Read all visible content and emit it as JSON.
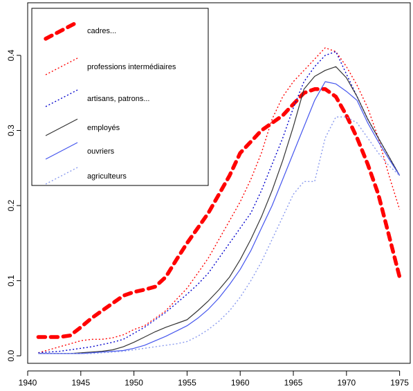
{
  "chart_data": {
    "type": "line",
    "title": "",
    "xlabel": "",
    "ylabel": "",
    "xlim": [
      1940,
      1976
    ],
    "ylim": [
      -0.01,
      0.47
    ],
    "xticks": [
      1940,
      1945,
      1950,
      1955,
      1960,
      1965,
      1970,
      1975
    ],
    "yticks": [
      0.0,
      0.1,
      0.2,
      0.3,
      0.4
    ],
    "xtick_labels": [
      "1940",
      "1945",
      "1950",
      "1955",
      "1960",
      "1965",
      "1970",
      "1975"
    ],
    "ytick_labels": [
      "0.0",
      "0.1",
      "0.2",
      "0.3",
      "0.4"
    ],
    "grid": false,
    "legend_position": "top-left",
    "series": [
      {
        "name": "cadres...",
        "color": "#ff0000",
        "style": "thick-dashed",
        "x": [
          1941,
          1942,
          1943,
          1944,
          1945,
          1946,
          1947,
          1948,
          1949,
          1950,
          1951,
          1952,
          1953,
          1954,
          1955,
          1956,
          1957,
          1958,
          1959,
          1960,
          1961,
          1962,
          1963,
          1964,
          1965,
          1966,
          1967,
          1968,
          1969,
          1970,
          1971,
          1972,
          1973,
          1974,
          1975
        ],
        "y": [
          0.025,
          0.025,
          0.025,
          0.027,
          0.038,
          0.05,
          0.06,
          0.07,
          0.08,
          0.085,
          0.088,
          0.092,
          0.105,
          0.128,
          0.15,
          0.17,
          0.19,
          0.215,
          0.24,
          0.27,
          0.285,
          0.3,
          0.31,
          0.32,
          0.335,
          0.35,
          0.355,
          0.355,
          0.345,
          0.32,
          0.29,
          0.255,
          0.215,
          0.16,
          0.105
        ]
      },
      {
        "name": "professions intermédiaires",
        "color": "#ff0000",
        "style": "dotted",
        "x": [
          1941,
          1942,
          1943,
          1944,
          1945,
          1946,
          1947,
          1948,
          1949,
          1950,
          1951,
          1952,
          1953,
          1954,
          1955,
          1956,
          1957,
          1958,
          1959,
          1960,
          1961,
          1962,
          1963,
          1964,
          1965,
          1966,
          1967,
          1968,
          1969,
          1970,
          1971,
          1972,
          1973,
          1974,
          1975
        ],
        "y": [
          0.004,
          0.008,
          0.012,
          0.016,
          0.02,
          0.022,
          0.022,
          0.024,
          0.028,
          0.035,
          0.04,
          0.05,
          0.06,
          0.075,
          0.09,
          0.11,
          0.13,
          0.155,
          0.18,
          0.205,
          0.235,
          0.27,
          0.315,
          0.345,
          0.365,
          0.38,
          0.395,
          0.41,
          0.405,
          0.385,
          0.36,
          0.33,
          0.29,
          0.24,
          0.195
        ]
      },
      {
        "name": "artisans, patrons...",
        "color": "#0000cc",
        "style": "dotted",
        "x": [
          1941,
          1942,
          1943,
          1944,
          1945,
          1946,
          1947,
          1948,
          1949,
          1950,
          1951,
          1952,
          1953,
          1954,
          1955,
          1956,
          1957,
          1958,
          1959,
          1960,
          1961,
          1962,
          1963,
          1964,
          1965,
          1966,
          1967,
          1968,
          1969,
          1970,
          1971,
          1972,
          1973,
          1974,
          1975
        ],
        "y": [
          0.004,
          0.005,
          0.006,
          0.008,
          0.01,
          0.012,
          0.015,
          0.018,
          0.022,
          0.03,
          0.038,
          0.048,
          0.058,
          0.07,
          0.082,
          0.095,
          0.11,
          0.13,
          0.15,
          0.17,
          0.19,
          0.22,
          0.255,
          0.29,
          0.33,
          0.365,
          0.385,
          0.4,
          0.405,
          0.375,
          0.345,
          0.315,
          0.29,
          0.265,
          0.24
        ]
      },
      {
        "name": "employés",
        "color": "#333333",
        "style": "solid",
        "x": [
          1941,
          1942,
          1943,
          1944,
          1945,
          1946,
          1947,
          1948,
          1949,
          1950,
          1951,
          1952,
          1953,
          1954,
          1955,
          1956,
          1957,
          1958,
          1959,
          1960,
          1961,
          1962,
          1963,
          1964,
          1965,
          1966,
          1967,
          1968,
          1969,
          1970,
          1971,
          1972,
          1973,
          1974,
          1975
        ],
        "y": [
          0.003,
          0.003,
          0.003,
          0.003,
          0.004,
          0.005,
          0.006,
          0.008,
          0.012,
          0.018,
          0.025,
          0.032,
          0.038,
          0.043,
          0.048,
          0.06,
          0.073,
          0.088,
          0.105,
          0.128,
          0.155,
          0.185,
          0.22,
          0.26,
          0.305,
          0.355,
          0.372,
          0.38,
          0.385,
          0.37,
          0.345,
          0.315,
          0.29,
          0.265,
          0.24
        ]
      },
      {
        "name": "ouvriers",
        "color": "#4455ee",
        "style": "solid",
        "x": [
          1941,
          1942,
          1943,
          1944,
          1945,
          1946,
          1947,
          1948,
          1949,
          1950,
          1951,
          1952,
          1953,
          1954,
          1955,
          1956,
          1957,
          1958,
          1959,
          1960,
          1961,
          1962,
          1963,
          1964,
          1965,
          1966,
          1967,
          1968,
          1969,
          1970,
          1971,
          1972,
          1973,
          1974,
          1975
        ],
        "y": [
          0.003,
          0.003,
          0.003,
          0.003,
          0.003,
          0.004,
          0.005,
          0.006,
          0.007,
          0.01,
          0.014,
          0.02,
          0.026,
          0.033,
          0.04,
          0.05,
          0.062,
          0.077,
          0.095,
          0.115,
          0.14,
          0.17,
          0.2,
          0.235,
          0.27,
          0.305,
          0.34,
          0.365,
          0.362,
          0.352,
          0.34,
          0.31,
          0.285,
          0.262,
          0.24
        ]
      },
      {
        "name": "agriculteurs",
        "color": "#8899ee",
        "style": "dotted",
        "x": [
          1941,
          1942,
          1943,
          1944,
          1945,
          1946,
          1947,
          1948,
          1949,
          1950,
          1951,
          1952,
          1953,
          1954,
          1955,
          1956,
          1957,
          1958,
          1959,
          1960,
          1961,
          1962,
          1963,
          1964,
          1965,
          1966,
          1967,
          1968,
          1969,
          1970,
          1971,
          1972,
          1973,
          1974,
          1975
        ],
        "y": [
          0.003,
          0.003,
          0.003,
          0.003,
          0.003,
          0.003,
          0.004,
          0.005,
          0.006,
          0.008,
          0.01,
          0.012,
          0.014,
          0.016,
          0.019,
          0.026,
          0.035,
          0.046,
          0.06,
          0.078,
          0.1,
          0.125,
          0.155,
          0.185,
          0.215,
          0.232,
          0.232,
          0.29,
          0.318,
          0.318,
          0.31,
          0.29,
          0.27,
          0.253,
          0.24
        ]
      }
    ]
  }
}
